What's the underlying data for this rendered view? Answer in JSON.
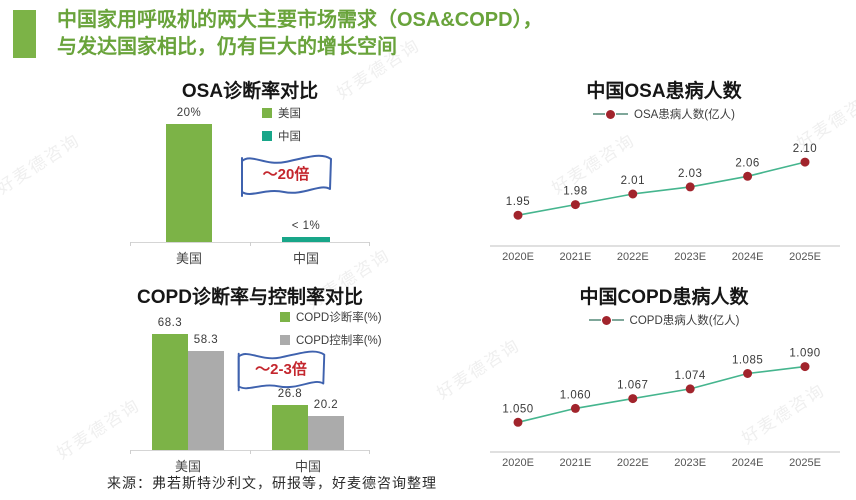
{
  "header": {
    "title_line1": "中国家用呼吸机的两大主要市场需求（OSA&COPD），",
    "title_line2": "与发达国家相比，仍有巨大的增长空间"
  },
  "watermark": {
    "text": "好麦德咨询"
  },
  "footer": {
    "source": "来源：弗若斯特沙利文，研报等，好麦德咨询整理"
  },
  "colors": {
    "accent_green": "#7cb347",
    "title_green": "#69a33b",
    "teal": "#18a689",
    "gray_bar": "#ababab",
    "line_green": "#45b58e",
    "dot_red": "#a1242c",
    "banner_blue": "#3f62ae",
    "annotation_red": "#c4272e",
    "axis_gray": "#d5d5d5"
  },
  "chart_data": [
    {
      "id": "osa-bar",
      "type": "bar",
      "title": "OSA诊断率对比",
      "categories": [
        "美国",
        "中国"
      ],
      "values": [
        20,
        0.8
      ],
      "bar_labels": [
        "20%",
        "< 1%"
      ],
      "bar_colors": [
        "#7cb347",
        "#18a689"
      ],
      "legend": [
        {
          "label": "美国",
          "color": "#7cb347"
        },
        {
          "label": "中国",
          "color": "#18a689"
        }
      ],
      "annotation": "～20倍",
      "ylabel": "",
      "xlabel": "",
      "ylim": [
        0,
        22
      ],
      "grid": false
    },
    {
      "id": "osa-line",
      "type": "line",
      "title": "中国OSA患病人数",
      "legend_label": "OSA患病人数(亿人)",
      "x": [
        "2020E",
        "2021E",
        "2022E",
        "2023E",
        "2024E",
        "2025E"
      ],
      "values": [
        1.95,
        1.98,
        2.01,
        2.03,
        2.06,
        2.1
      ],
      "labels": [
        "1.95",
        "1.98",
        "2.01",
        "2.03",
        "2.06",
        "2.10"
      ],
      "ylim": [
        1.88,
        2.12
      ],
      "line_color": "#45b58e",
      "dot_color": "#a1242c",
      "grid": false
    },
    {
      "id": "copd-bar",
      "type": "bar",
      "title": "COPD诊断率与控制率对比",
      "categories": [
        "美国",
        "中国"
      ],
      "series": [
        {
          "name": "COPD诊断率(%)",
          "color": "#7cb347",
          "values": [
            68.3,
            26.8
          ],
          "labels": [
            "68.3",
            "26.8"
          ]
        },
        {
          "name": "COPD控制率(%)",
          "color": "#ababab",
          "values": [
            58.3,
            20.2
          ],
          "labels": [
            "58.3",
            "20.2"
          ]
        }
      ],
      "legend": [
        {
          "label": "COPD诊断率(%)",
          "color": "#7cb347"
        },
        {
          "label": "COPD控制率(%)",
          "color": "#ababab"
        }
      ],
      "annotation": "～2-3倍",
      "ylabel": "",
      "xlabel": "",
      "ylim": [
        0,
        75
      ],
      "grid": false
    },
    {
      "id": "copd-line",
      "type": "line",
      "title": "中国COPD患病人数",
      "legend_label": "COPD患病人数(亿人)",
      "x": [
        "2020E",
        "2021E",
        "2022E",
        "2023E",
        "2024E",
        "2025E"
      ],
      "values": [
        1.05,
        1.06,
        1.067,
        1.074,
        1.085,
        1.09
      ],
      "labels": [
        "1.050",
        "1.060",
        "1.067",
        "1.074",
        "1.085",
        "1.090"
      ],
      "ylim": [
        1.033,
        1.094
      ],
      "line_color": "#45b58e",
      "dot_color": "#a1242c",
      "grid": false
    }
  ]
}
